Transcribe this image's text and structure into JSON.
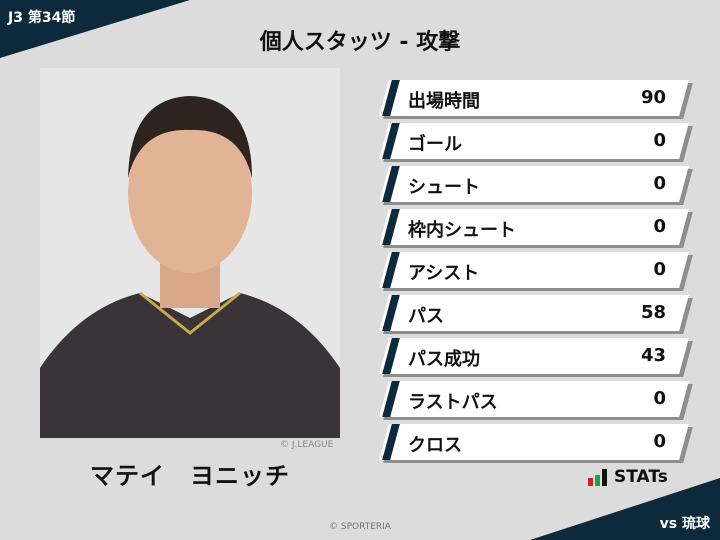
{
  "header": {
    "round": "J3 第34節",
    "title": "個人スタッツ - 攻撃",
    "opponent": "vs 琉球"
  },
  "player": {
    "name": "マテイ　ヨニッチ",
    "photo_credit": "© J.LEAGUE"
  },
  "stats": [
    {
      "label": "出場時間",
      "value": "90"
    },
    {
      "label": "ゴール",
      "value": "0"
    },
    {
      "label": "シュート",
      "value": "0"
    },
    {
      "label": "枠内シュート",
      "value": "0"
    },
    {
      "label": "アシスト",
      "value": "0"
    },
    {
      "label": "パス",
      "value": "58"
    },
    {
      "label": "パス成功",
      "value": "43"
    },
    {
      "label": "ラストパス",
      "value": "0"
    },
    {
      "label": "クロス",
      "value": "0"
    }
  ],
  "brand": {
    "logo_text": "STATs",
    "footer": "© SPORTERIA"
  },
  "colors": {
    "navy": "#0d2a3c",
    "bar": "#ffffff",
    "background": "#dcdcdc"
  }
}
